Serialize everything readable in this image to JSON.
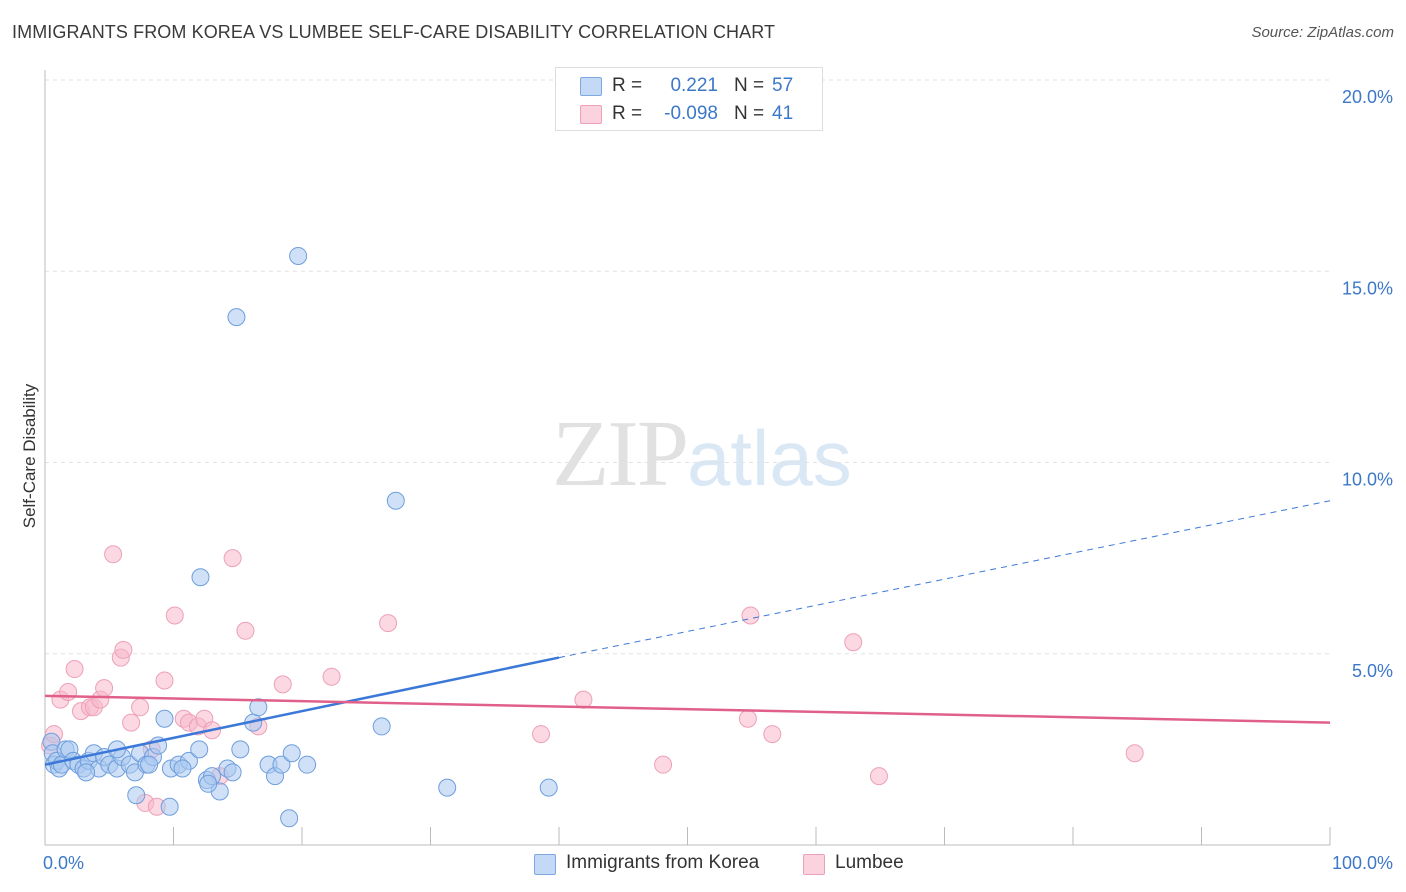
{
  "header": {
    "title": "IMMIGRANTS FROM KOREA VS LUMBEE SELF-CARE DISABILITY CORRELATION CHART",
    "source": "Source: ZipAtlas.com"
  },
  "watermark": {
    "zip": "ZIP",
    "atlas": "atlas"
  },
  "legend": {
    "rows": [
      {
        "r_label": "R =",
        "r_value": "0.221",
        "n_label": "N =",
        "n_value": "57",
        "color": "#a9c8f0"
      },
      {
        "r_label": "R =",
        "r_value": "-0.098",
        "n_label": "N =",
        "n_value": "41",
        "color": "#f7b8cb"
      }
    ]
  },
  "bottom_legend": {
    "items": [
      {
        "label": "Immigrants from Korea",
        "color": "#a9c8f0"
      },
      {
        "label": "Lumbee",
        "color": "#f7b8cb"
      }
    ]
  },
  "chart_data": {
    "type": "scatter",
    "title": "IMMIGRANTS FROM KOREA VS LUMBEE SELF-CARE DISABILITY CORRELATION CHART",
    "xlabel": "",
    "ylabel": "Self-Care Disability",
    "xlim": [
      0,
      100
    ],
    "ylim": [
      0,
      20.5
    ],
    "x_tick_labels": [
      {
        "value": 0,
        "label": "0.0%"
      },
      {
        "value": 100,
        "label": "100.0%"
      }
    ],
    "y_tick_labels": [
      {
        "value": 5,
        "label": "5.0%"
      },
      {
        "value": 10,
        "label": "10.0%"
      },
      {
        "value": 15,
        "label": "15.0%"
      },
      {
        "value": 20,
        "label": "20.0%"
      }
    ],
    "grid": true,
    "colors": {
      "korea": "#3c78d8",
      "lumbee": "#e0608a",
      "korea_fill": "#a9c8f0",
      "lumbee_fill": "#f7b8cb"
    },
    "series": [
      {
        "name": "Immigrants from Korea",
        "points": [
          [
            0.5,
            2.7
          ],
          [
            0.6,
            2.4
          ],
          [
            0.7,
            2.1
          ],
          [
            0.9,
            2.2
          ],
          [
            1.1,
            2.0
          ],
          [
            1.3,
            2.1
          ],
          [
            1.6,
            2.5
          ],
          [
            1.9,
            2.5
          ],
          [
            2.2,
            2.2
          ],
          [
            2.6,
            2.1
          ],
          [
            3.0,
            2.0
          ],
          [
            3.4,
            2.2
          ],
          [
            3.8,
            2.4
          ],
          [
            4.2,
            2.0
          ],
          [
            4.6,
            2.3
          ],
          [
            5.0,
            2.1
          ],
          [
            5.6,
            2.0
          ],
          [
            6.0,
            2.3
          ],
          [
            6.6,
            2.1
          ],
          [
            7.0,
            1.9
          ],
          [
            7.4,
            2.4
          ],
          [
            7.9,
            2.1
          ],
          [
            8.4,
            2.3
          ],
          [
            8.8,
            2.6
          ],
          [
            9.3,
            3.3
          ],
          [
            9.8,
            2.0
          ],
          [
            10.4,
            2.1
          ],
          [
            11.2,
            2.2
          ],
          [
            12.0,
            2.5
          ],
          [
            12.6,
            1.7
          ],
          [
            13.0,
            1.8
          ],
          [
            13.6,
            1.4
          ],
          [
            14.2,
            2.0
          ],
          [
            14.6,
            1.9
          ],
          [
            15.2,
            2.5
          ],
          [
            16.2,
            3.2
          ],
          [
            16.6,
            3.6
          ],
          [
            17.4,
            2.1
          ],
          [
            17.9,
            1.8
          ],
          [
            18.4,
            2.1
          ],
          [
            19.2,
            2.4
          ],
          [
            20.4,
            2.1
          ],
          [
            7.1,
            1.3
          ],
          [
            9.7,
            1.0
          ],
          [
            12.7,
            1.6
          ],
          [
            19.0,
            0.7
          ],
          [
            14.9,
            13.8
          ],
          [
            19.7,
            15.4
          ],
          [
            12.1,
            7.0
          ],
          [
            26.2,
            3.1
          ],
          [
            27.3,
            9.0
          ],
          [
            31.3,
            1.5
          ],
          [
            39.2,
            1.5
          ],
          [
            3.2,
            1.9
          ],
          [
            5.6,
            2.5
          ],
          [
            8.1,
            2.1
          ],
          [
            10.7,
            2.0
          ]
        ]
      },
      {
        "name": "Lumbee",
        "points": [
          [
            0.4,
            2.6
          ],
          [
            0.7,
            2.9
          ],
          [
            1.2,
            3.8
          ],
          [
            1.8,
            4.0
          ],
          [
            2.3,
            4.6
          ],
          [
            2.8,
            3.5
          ],
          [
            3.5,
            3.6
          ],
          [
            3.8,
            3.6
          ],
          [
            4.3,
            3.8
          ],
          [
            4.6,
            4.1
          ],
          [
            5.3,
            7.6
          ],
          [
            5.9,
            4.9
          ],
          [
            6.1,
            5.1
          ],
          [
            6.7,
            3.2
          ],
          [
            7.4,
            3.6
          ],
          [
            7.8,
            1.1
          ],
          [
            8.3,
            2.5
          ],
          [
            8.7,
            1.0
          ],
          [
            9.3,
            4.3
          ],
          [
            10.1,
            6.0
          ],
          [
            10.8,
            3.3
          ],
          [
            11.2,
            3.2
          ],
          [
            11.9,
            3.1
          ],
          [
            12.4,
            3.3
          ],
          [
            13.0,
            3.0
          ],
          [
            13.6,
            1.8
          ],
          [
            14.6,
            7.5
          ],
          [
            15.6,
            5.6
          ],
          [
            16.6,
            3.1
          ],
          [
            18.5,
            4.2
          ],
          [
            22.3,
            4.4
          ],
          [
            26.7,
            5.8
          ],
          [
            38.6,
            2.9
          ],
          [
            41.9,
            3.8
          ],
          [
            48.1,
            2.1
          ],
          [
            54.7,
            3.3
          ],
          [
            54.9,
            6.0
          ],
          [
            56.6,
            2.9
          ],
          [
            62.9,
            5.3
          ],
          [
            64.9,
            1.8
          ],
          [
            84.8,
            2.4
          ]
        ]
      }
    ],
    "trendlines": [
      {
        "series": "Immigrants from Korea",
        "solid": [
          [
            0,
            2.1
          ],
          [
            40,
            4.9
          ]
        ],
        "dashed": [
          [
            40,
            4.9
          ],
          [
            100,
            9.0
          ]
        ]
      },
      {
        "series": "Lumbee",
        "solid": [
          [
            0,
            3.9
          ],
          [
            100,
            3.2
          ]
        ]
      }
    ]
  }
}
